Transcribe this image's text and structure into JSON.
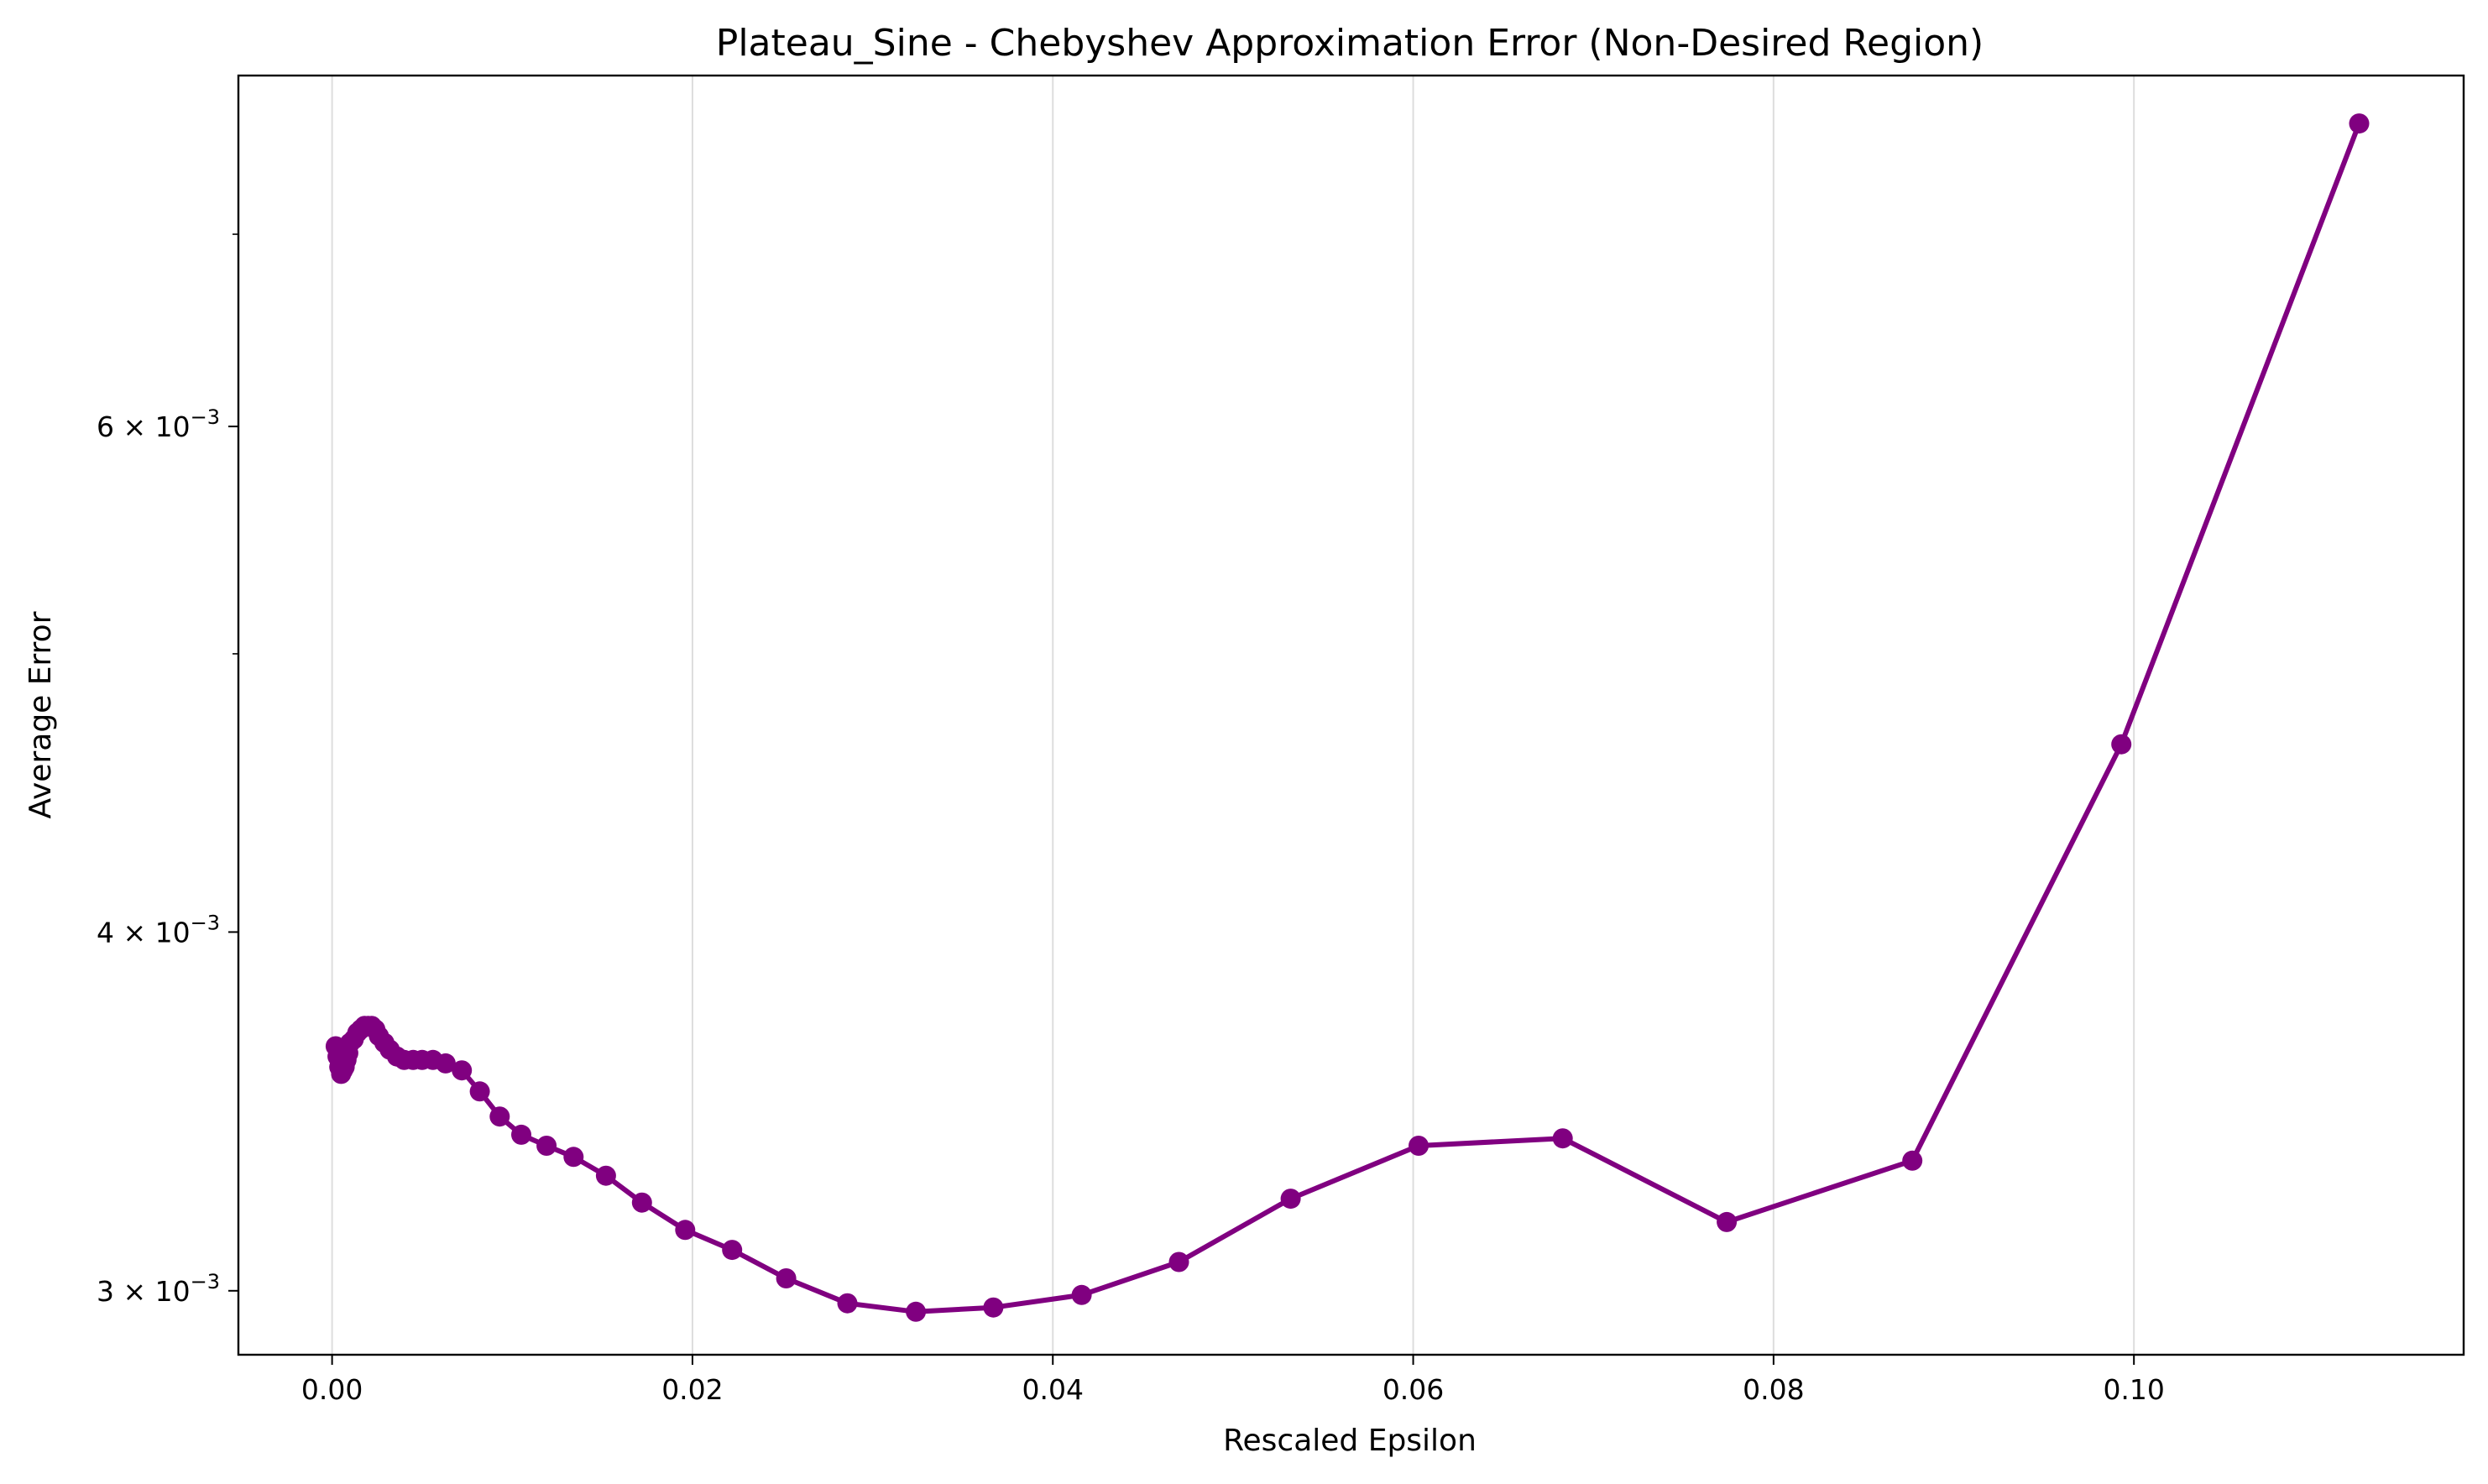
{
  "chart_data": {
    "type": "line",
    "title": "Plateau_Sine - Chebyshev Approximation Error (Non-Desired Region)",
    "xlabel": "Rescaled Epsilon",
    "ylabel": "Average Error",
    "yscale": "log",
    "xlim": [
      -0.0052,
      0.1183
    ],
    "ylim": [
      0.00285,
      0.00795
    ],
    "grid": "vertical",
    "legend": "none",
    "color": "#800080",
    "x_ticks": [
      {
        "value": 0.0,
        "label": "0.00"
      },
      {
        "value": 0.02,
        "label": "0.02"
      },
      {
        "value": 0.04,
        "label": "0.04"
      },
      {
        "value": 0.06,
        "label": "0.06"
      },
      {
        "value": 0.08,
        "label": "0.08"
      },
      {
        "value": 0.1,
        "label": "0.10"
      }
    ],
    "y_ticks_major": [
      {
        "value": 0.003,
        "base": "3 × 10",
        "exp": "−3"
      },
      {
        "value": 0.004,
        "base": "4 × 10",
        "exp": "−3"
      },
      {
        "value": 0.006,
        "base": "6 × 10",
        "exp": "−3"
      }
    ],
    "y_ticks_minor": [
      0.005,
      0.007
    ],
    "series": [
      {
        "x": [
          0.0002,
          0.0003,
          0.0004,
          0.0005,
          0.0006,
          0.0007,
          0.0008,
          0.0009,
          0.001,
          0.0012,
          0.0014,
          0.0016,
          0.0018,
          0.002,
          0.0022,
          0.0024,
          0.0026,
          0.0029,
          0.0032,
          0.0036,
          0.004,
          0.0045,
          0.005,
          0.0056,
          0.0063,
          0.0072,
          0.0082,
          0.0093,
          0.0105,
          0.0119,
          0.0134,
          0.0152,
          0.0172,
          0.0196,
          0.0222,
          0.0252,
          0.0286,
          0.0324,
          0.0367,
          0.0416,
          0.047,
          0.0532,
          0.0603,
          0.0683,
          0.0774,
          0.0877,
          0.0993,
          0.1125
        ],
        "y": [
          0.00365,
          0.00362,
          0.00359,
          0.00357,
          0.00358,
          0.00359,
          0.00361,
          0.00363,
          0.00366,
          0.00367,
          0.00369,
          0.0037,
          0.00371,
          0.00371,
          0.00371,
          0.0037,
          0.00368,
          0.00366,
          0.00364,
          0.00362,
          0.00361,
          0.00361,
          0.00361,
          0.00361,
          0.0036,
          0.00358,
          0.00352,
          0.00345,
          0.0034,
          0.00337,
          0.00334,
          0.00329,
          0.00322,
          0.00315,
          0.0031,
          0.00303,
          0.00297,
          0.00295,
          0.00296,
          0.00299,
          0.00307,
          0.00323,
          0.00337,
          0.00339,
          0.00317,
          0.00333,
          0.00465,
          0.00765
        ]
      }
    ]
  }
}
